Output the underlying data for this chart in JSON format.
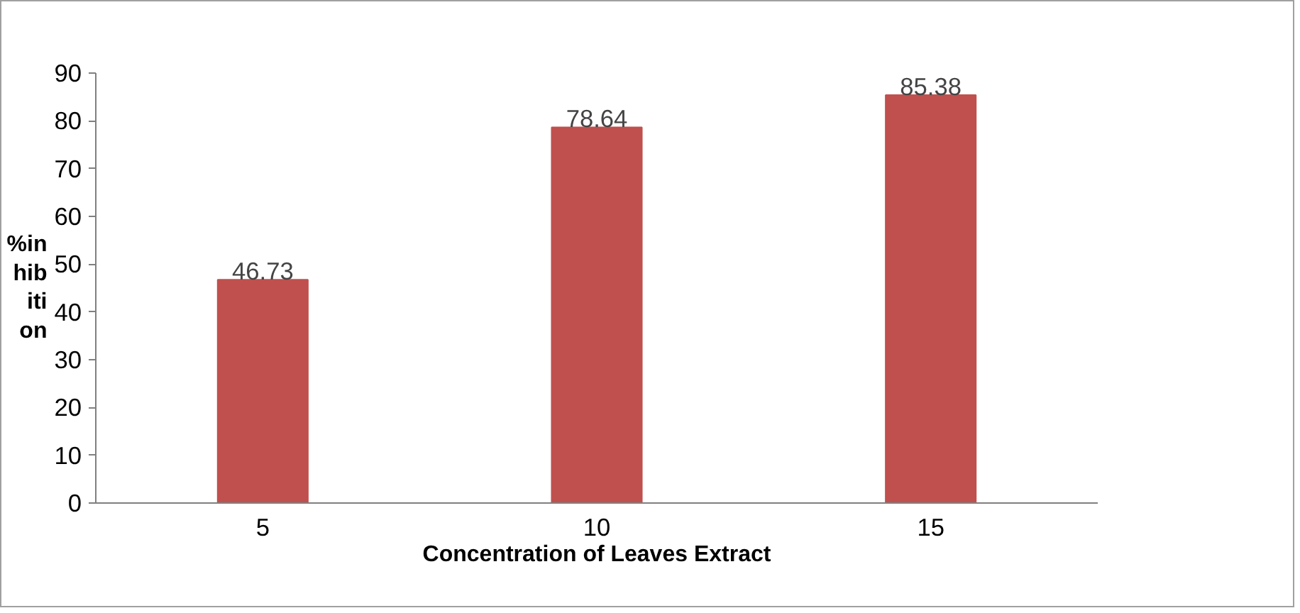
{
  "chart_data": {
    "type": "bar",
    "xlabel": "Concentration of Leaves Extract",
    "ylabel": "%inhibition",
    "categories": [
      "5",
      "10",
      "15"
    ],
    "values": [
      46.73,
      78.64,
      85.38
    ],
    "color": "#c0504d",
    "ylim": [
      0,
      90
    ],
    "yticks": [
      0,
      10,
      20,
      30,
      40,
      50,
      60,
      70,
      80,
      90
    ],
    "data_labels": true,
    "grid": false
  }
}
